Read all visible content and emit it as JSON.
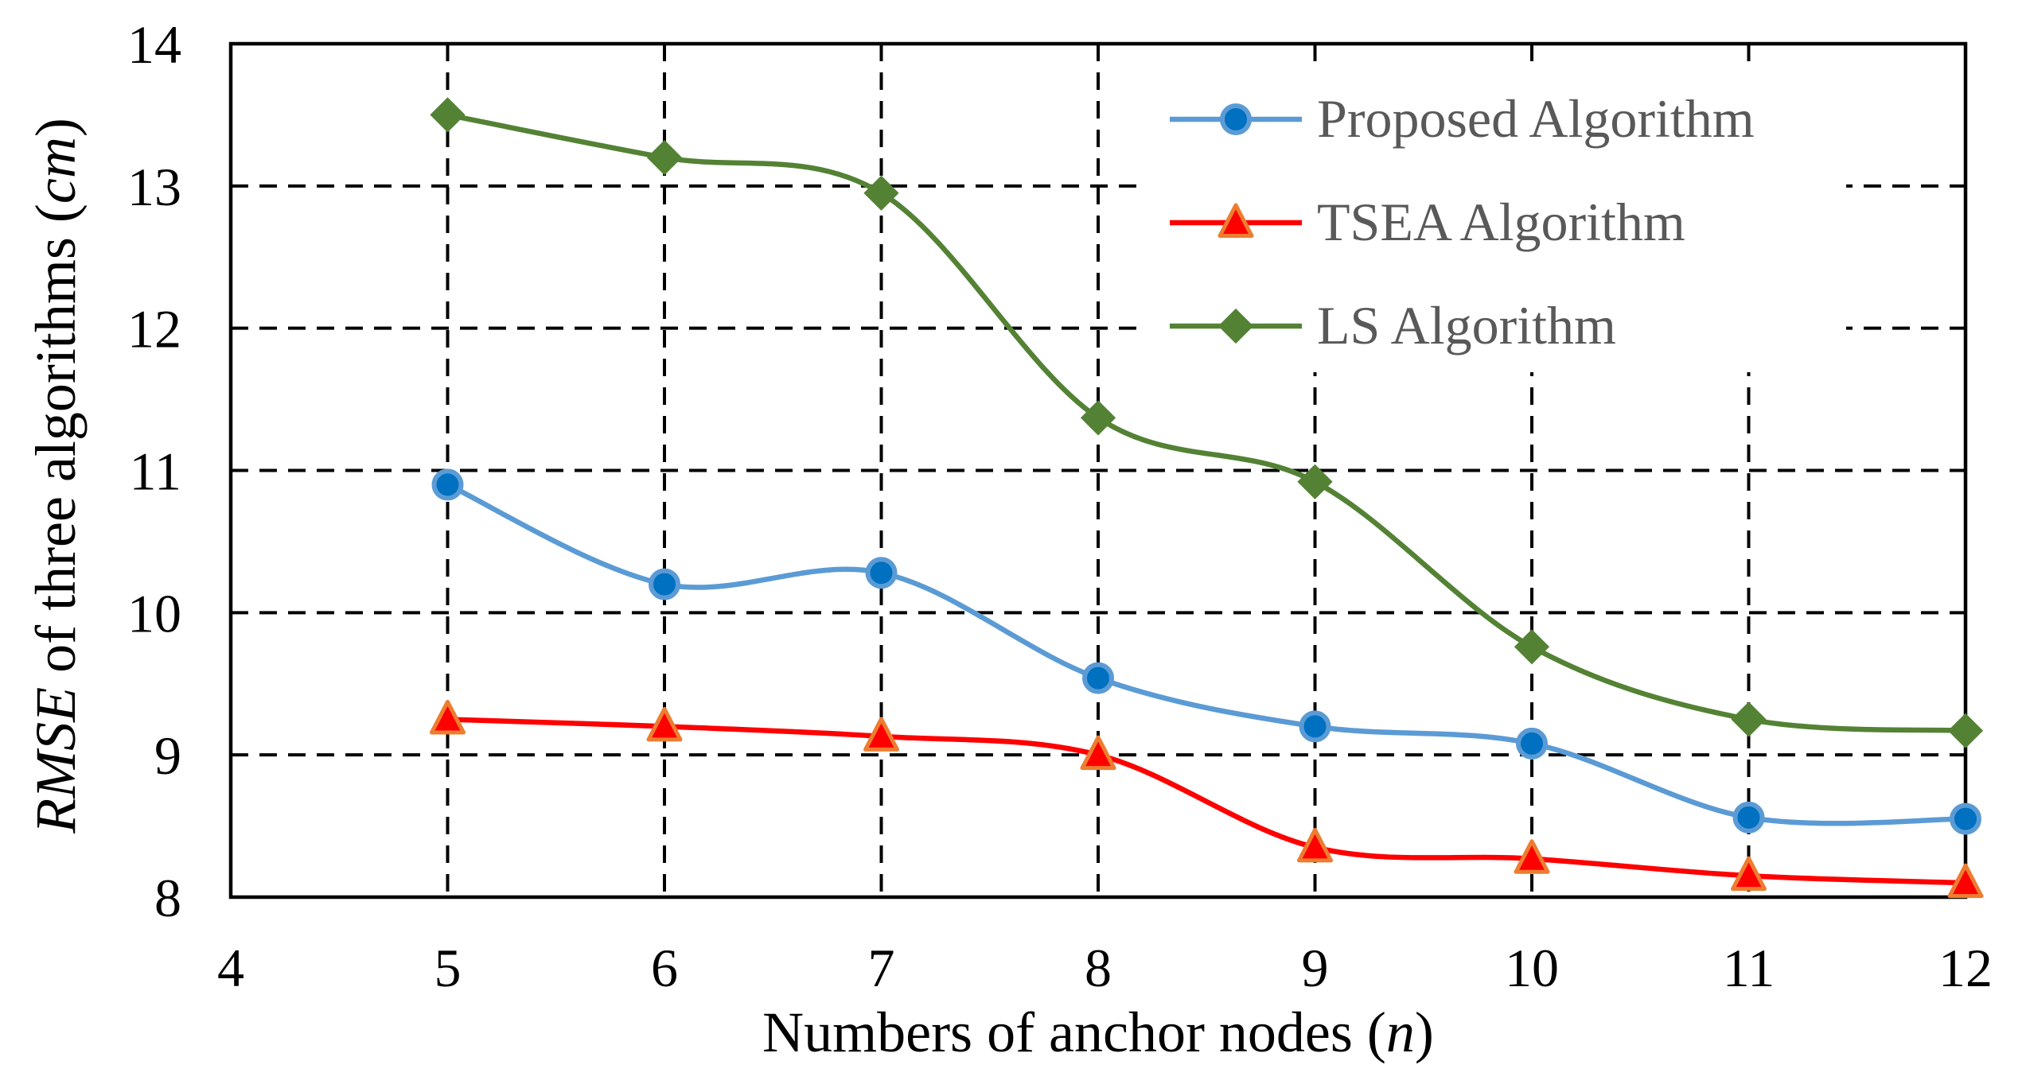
{
  "chart_data": {
    "type": "line",
    "xlabel_parts": [
      "Numbers of anchor nodes (",
      "n",
      ")"
    ],
    "ylabel_parts": [
      "RMSE",
      " of three algorithms (",
      "cm",
      ")"
    ],
    "xlim": [
      4,
      12
    ],
    "ylim": [
      8,
      14
    ],
    "x_ticks": [
      "4",
      "5",
      "6",
      "7",
      "8",
      "9",
      "10",
      "11",
      "12"
    ],
    "y_ticks": [
      "8",
      "9",
      "10",
      "11",
      "12",
      "13",
      "14"
    ],
    "grid": true,
    "legend_position": "top-right",
    "x": [
      5,
      6,
      7,
      8,
      9,
      10,
      11,
      12
    ],
    "series": [
      {
        "name": "Proposed Algorithm",
        "marker": "circle",
        "color": "#5B9BD5",
        "fill": "#0070C0",
        "values": [
          10.9,
          10.2,
          10.28,
          9.54,
          9.2,
          9.08,
          8.56,
          8.55
        ]
      },
      {
        "name": "TSEA Algorithm",
        "marker": "triangle",
        "color": "#FF0000",
        "fill": "#FF0000",
        "edge": "#ED7D31",
        "values": [
          9.25,
          9.2,
          9.13,
          9.0,
          8.35,
          8.27,
          8.15,
          8.1
        ]
      },
      {
        "name": "LS Algorithm",
        "marker": "diamond",
        "color": "#548235",
        "fill": "#548235",
        "values": [
          13.5,
          13.2,
          12.95,
          11.37,
          10.92,
          9.76,
          9.25,
          9.17
        ]
      }
    ]
  }
}
